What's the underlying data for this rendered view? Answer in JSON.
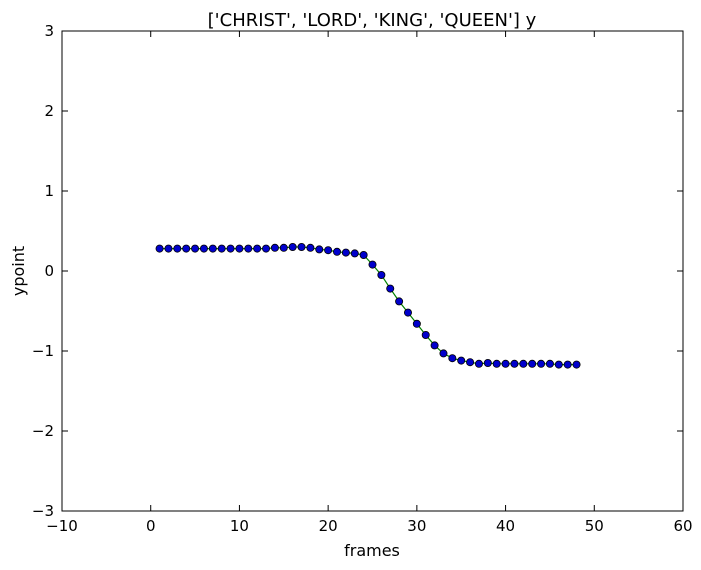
{
  "chart_data": {
    "type": "line",
    "title": "['CHRIST', 'LORD', 'KING', 'QUEEN'] y",
    "xlabel": "frames",
    "ylabel": "ypoint",
    "xlim": [
      -10,
      60
    ],
    "ylim": [
      -3,
      3
    ],
    "xticks": [
      -10,
      0,
      10,
      20,
      30,
      40,
      50,
      60
    ],
    "yticks": [
      -3,
      -2,
      -1,
      0,
      1,
      2,
      3
    ],
    "xtick_labels": [
      "−10",
      "0",
      "10",
      "20",
      "30",
      "40",
      "50",
      "60"
    ],
    "ytick_labels": [
      "−3",
      "−2",
      "−1",
      "0",
      "1",
      "2",
      "3"
    ],
    "grid": false,
    "line_color": "#008000",
    "marker_color": "#0000cc",
    "marker_edge": "#000000",
    "x": [
      1,
      2,
      3,
      4,
      5,
      6,
      7,
      8,
      9,
      10,
      11,
      12,
      13,
      14,
      15,
      16,
      17,
      18,
      19,
      20,
      21,
      22,
      23,
      24,
      25,
      26,
      27,
      28,
      29,
      30,
      31,
      32,
      33,
      34,
      35,
      36,
      37,
      38,
      39,
      40,
      41,
      42,
      43,
      44,
      45,
      46,
      47,
      48
    ],
    "y": [
      0.28,
      0.28,
      0.28,
      0.28,
      0.28,
      0.28,
      0.28,
      0.28,
      0.28,
      0.28,
      0.28,
      0.28,
      0.28,
      0.29,
      0.29,
      0.3,
      0.3,
      0.29,
      0.27,
      0.26,
      0.24,
      0.23,
      0.22,
      0.2,
      0.08,
      -0.05,
      -0.22,
      -0.38,
      -0.52,
      -0.66,
      -0.8,
      -0.93,
      -1.03,
      -1.09,
      -1.12,
      -1.14,
      -1.16,
      -1.15,
      -1.16,
      -1.16,
      -1.16,
      -1.16,
      -1.16,
      -1.16,
      -1.16,
      -1.17,
      -1.17,
      -1.17
    ]
  }
}
